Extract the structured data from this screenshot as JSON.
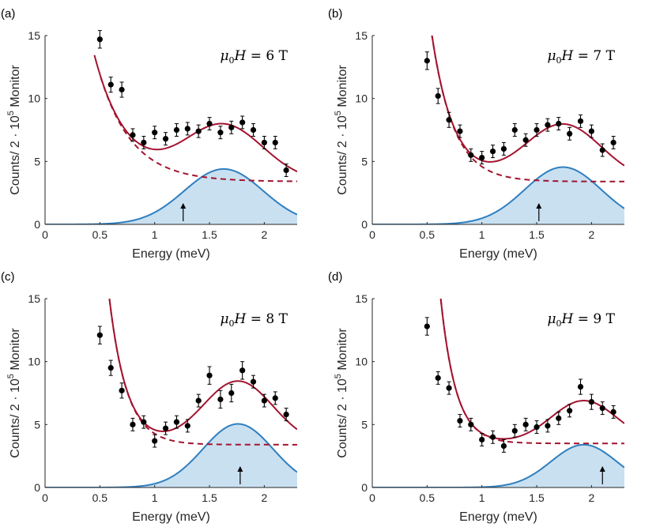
{
  "colors": {
    "fit_total": "#a2142f",
    "background": "#a2142f",
    "peak_line": "#2f7fbf",
    "peak_fill": "#c9e0f1",
    "points": "#000000",
    "axis": "#262626"
  },
  "chart_data": [
    {
      "type": "scatter",
      "panel_label": "(a)",
      "annotation": {
        "prefix": "μ",
        "sub": "0",
        "var": "H",
        "rest": " = 6 T"
      },
      "xlabel": "Energy (meV)",
      "ylabel": {
        "pre": "Counts/ 2 · 10",
        "sup": "5",
        "post": " Monitor"
      },
      "xlim": [
        0,
        2.3
      ],
      "ylim": [
        0,
        15
      ],
      "xticks": [
        0,
        0.5,
        1,
        1.5,
        2
      ],
      "xtick_labels": [
        "0",
        "0.5",
        "1",
        "1.5",
        "2"
      ],
      "yticks": [
        0,
        5,
        10,
        15
      ],
      "ytick_labels": [
        "0",
        "5",
        "10",
        "15"
      ],
      "points": {
        "x": [
          0.5,
          0.6,
          0.7,
          0.8,
          0.9,
          1.0,
          1.1,
          1.2,
          1.3,
          1.4,
          1.5,
          1.6,
          1.7,
          1.8,
          1.9,
          2.0,
          2.1,
          2.2
        ],
        "y": [
          14.7,
          11.1,
          10.7,
          7.1,
          6.5,
          7.3,
          6.8,
          7.5,
          7.6,
          7.4,
          8.0,
          7.3,
          7.7,
          8.1,
          7.5,
          6.5,
          6.5,
          4.3
        ],
        "err": [
          0.7,
          0.6,
          0.6,
          0.5,
          0.5,
          0.5,
          0.5,
          0.5,
          0.5,
          0.5,
          0.5,
          0.5,
          0.5,
          0.5,
          0.5,
          0.5,
          0.5,
          0.5
        ]
      },
      "peak": {
        "center": 1.63,
        "amplitude": 4.4,
        "sigma": 0.36
      },
      "background": {
        "offset": 3.4,
        "scale": 8.5,
        "decay": 0.3
      },
      "arrow_x": 1.26
    },
    {
      "type": "scatter",
      "panel_label": "(b)",
      "annotation": {
        "prefix": "μ",
        "sub": "0",
        "var": "H",
        "rest": " = 7 T"
      },
      "xlabel": "Energy (meV)",
      "ylabel": {
        "pre": "Counts/ 2 · 10",
        "sup": "5",
        "post": " Monitor"
      },
      "xlim": [
        0,
        2.3
      ],
      "ylim": [
        0,
        15
      ],
      "xticks": [
        0,
        0.5,
        1,
        1.5,
        2
      ],
      "xtick_labels": [
        "0",
        "0.5",
        "1",
        "1.5",
        "2"
      ],
      "yticks": [
        0,
        5,
        10,
        15
      ],
      "ytick_labels": [
        "0",
        "5",
        "10",
        "15"
      ],
      "points": {
        "x": [
          0.5,
          0.6,
          0.7,
          0.8,
          0.9,
          1.0,
          1.1,
          1.2,
          1.3,
          1.4,
          1.5,
          1.6,
          1.7,
          1.8,
          1.9,
          2.0,
          2.1,
          2.2
        ],
        "y": [
          13.0,
          10.2,
          8.3,
          7.4,
          5.5,
          5.3,
          5.8,
          6.0,
          7.5,
          6.7,
          7.5,
          7.9,
          8.0,
          7.2,
          8.2,
          7.4,
          5.9,
          6.5
        ],
        "err": [
          0.7,
          0.6,
          0.6,
          0.5,
          0.5,
          0.5,
          0.5,
          0.5,
          0.5,
          0.5,
          0.5,
          0.5,
          0.5,
          0.5,
          0.5,
          0.5,
          0.5,
          0.5
        ]
      },
      "peak": {
        "center": 1.74,
        "amplitude": 4.55,
        "sigma": 0.35
      },
      "background": {
        "offset": 3.4,
        "scale": 14.5,
        "decay": 0.2
      },
      "arrow_x": 1.52
    },
    {
      "type": "scatter",
      "panel_label": "(c)",
      "annotation": {
        "prefix": "μ",
        "sub": "0",
        "var": "H",
        "rest": " = 8 T"
      },
      "xlabel": "Energy (meV)",
      "ylabel": {
        "pre": "Counts/ 2 · 10",
        "sup": "5",
        "post": " Monitor"
      },
      "xlim": [
        0,
        2.3
      ],
      "ylim": [
        0,
        15
      ],
      "xticks": [
        0,
        0.5,
        1,
        1.5,
        2
      ],
      "xtick_labels": [
        "0",
        "0.5",
        "1",
        "1.5",
        "2"
      ],
      "yticks": [
        0,
        5,
        10,
        15
      ],
      "ytick_labels": [
        "0",
        "5",
        "10",
        "15"
      ],
      "points": {
        "x": [
          0.5,
          0.6,
          0.7,
          0.8,
          0.9,
          1.0,
          1.1,
          1.2,
          1.3,
          1.4,
          1.5,
          1.6,
          1.7,
          1.8,
          1.9,
          2.0,
          2.1,
          2.2
        ],
        "y": [
          12.1,
          9.5,
          7.7,
          5.0,
          5.2,
          3.7,
          4.7,
          5.2,
          4.9,
          6.9,
          8.9,
          7.0,
          7.5,
          9.3,
          8.4,
          6.9,
          7.1,
          5.8
        ],
        "err": [
          0.7,
          0.6,
          0.6,
          0.5,
          0.5,
          0.5,
          0.5,
          0.5,
          0.5,
          0.5,
          0.7,
          0.7,
          0.7,
          0.7,
          0.5,
          0.5,
          0.5,
          0.5
        ]
      },
      "peak": {
        "center": 1.76,
        "amplitude": 5.05,
        "sigma": 0.32
      },
      "background": {
        "offset": 3.4,
        "scale": 20.0,
        "decay": 0.16
      },
      "arrow_x": 1.78
    },
    {
      "type": "scatter",
      "panel_label": "(d)",
      "annotation": {
        "prefix": "μ",
        "sub": "0",
        "var": "H",
        "rest": " = 9 T"
      },
      "xlabel": "Energy (meV)",
      "ylabel": {
        "pre": "Counts/ 2 · 10",
        "sup": "5",
        "post": " Monitor"
      },
      "xlim": [
        0,
        2.3
      ],
      "ylim": [
        0,
        15
      ],
      "xticks": [
        0,
        0.5,
        1,
        1.5,
        2
      ],
      "xtick_labels": [
        "0",
        "0.5",
        "1",
        "1.5",
        "2"
      ],
      "yticks": [
        0,
        5,
        10,
        15
      ],
      "ytick_labels": [
        "0",
        "5",
        "10",
        "15"
      ],
      "points": {
        "x": [
          0.5,
          0.6,
          0.7,
          0.8,
          0.9,
          1.0,
          1.1,
          1.2,
          1.3,
          1.4,
          1.5,
          1.6,
          1.7,
          1.8,
          1.9,
          2.0,
          2.1,
          2.2
        ],
        "y": [
          12.8,
          8.7,
          7.9,
          5.3,
          5.0,
          3.8,
          4.0,
          3.3,
          4.5,
          5.0,
          4.8,
          4.9,
          5.5,
          6.1,
          8.0,
          6.8,
          6.3,
          6.0
        ],
        "err": [
          0.7,
          0.5,
          0.5,
          0.5,
          0.5,
          0.5,
          0.5,
          0.5,
          0.5,
          0.5,
          0.5,
          0.5,
          0.5,
          0.5,
          0.6,
          0.6,
          0.5,
          0.5
        ]
      },
      "peak": {
        "center": 1.93,
        "amplitude": 3.4,
        "sigma": 0.3
      },
      "background": {
        "offset": 3.5,
        "scale": 28.0,
        "decay": 0.14
      },
      "arrow_x": 2.1
    }
  ]
}
